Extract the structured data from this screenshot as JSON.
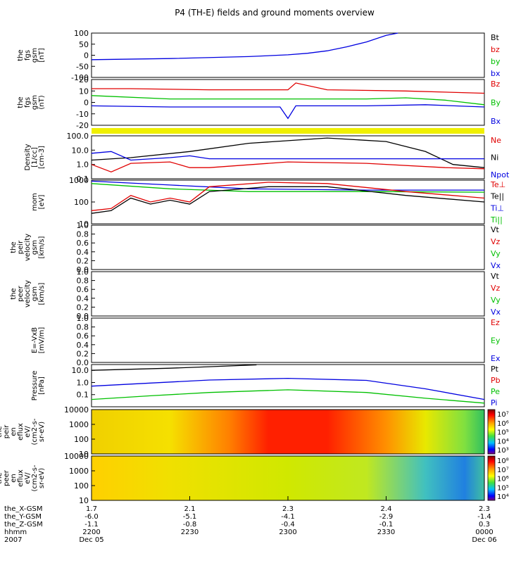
{
  "chart_data": {
    "type": "line",
    "title": "P4 (TH-E) fields and ground moments overview",
    "time_axis": {
      "ticks": [
        "2200",
        "2230",
        "2300",
        "2330",
        "0000"
      ],
      "dates": [
        "Dec 05",
        "",
        "",
        "",
        "Dec 06"
      ],
      "rows": [
        {
          "label": "the_X-GSM",
          "values": [
            "1.7",
            "2.1",
            "2.3",
            "2.4",
            "2.3"
          ]
        },
        {
          "label": "the_Y-GSM",
          "values": [
            "-6.0",
            "-5.1",
            "-4.1",
            "-2.9",
            "-1.4"
          ]
        },
        {
          "label": "the_Z-GSM",
          "values": [
            "-1.1",
            "-0.8",
            "-0.4",
            "-0.1",
            "0.3"
          ]
        },
        {
          "label": "hhmm",
          "values": [
            "2200",
            "2230",
            "2300",
            "2330",
            "0000"
          ]
        },
        {
          "label": "2007",
          "values": [
            "Dec 05",
            "",
            "",
            "",
            "Dec 06"
          ]
        }
      ]
    },
    "panels": [
      {
        "ylabel": [
          "the",
          "fgs",
          "gsm",
          "[nT]"
        ],
        "yscale": "linear",
        "ylim": [
          -100,
          100
        ],
        "ticks": [
          "100",
          "50",
          "0",
          "-50",
          "-100"
        ],
        "legend": [
          {
            "text": "Bt",
            "color": "#000000"
          },
          {
            "text": "bz",
            "color": "#e00000"
          },
          {
            "text": "by",
            "color": "#00c000"
          },
          {
            "text": "bx",
            "color": "#0000e0"
          }
        ],
        "series": [
          {
            "color": "#0000e0",
            "x": [
              0,
              0.2,
              0.4,
              0.5,
              0.55,
              0.6,
              0.65,
              0.7,
              0.75,
              0.78
            ],
            "y": [
              -20,
              -15,
              -6,
              2,
              9,
              20,
              38,
              60,
              90,
              100
            ]
          }
        ]
      },
      {
        "ylabel": [
          "the",
          "fgs",
          "gsm",
          "(nT)"
        ],
        "yscale": "linear",
        "ylim": [
          -20,
          20
        ],
        "ticks": [
          "20",
          "10",
          "0",
          "-10",
          "-20"
        ],
        "legend": [
          {
            "text": "Bz",
            "color": "#e00000"
          },
          {
            "text": "By",
            "color": "#00c000"
          },
          {
            "text": "Bx",
            "color": "#0000e0"
          }
        ],
        "series": [
          {
            "color": "#e00000",
            "x": [
              0,
              0.1,
              0.3,
              0.5,
              0.52,
              0.6,
              0.8,
              1
            ],
            "y": [
              12,
              12,
              11,
              11,
              17,
              11,
              10,
              8
            ]
          },
          {
            "color": "#00c000",
            "x": [
              0,
              0.2,
              0.5,
              0.7,
              0.8,
              0.9,
              1
            ],
            "y": [
              6,
              3,
              3,
              3,
              4,
              2,
              -2
            ]
          },
          {
            "color": "#0000e0",
            "x": [
              0,
              0.2,
              0.48,
              0.5,
              0.52,
              0.7,
              0.85,
              1
            ],
            "y": [
              -3,
              -4,
              -4,
              -14,
              -3,
              -3,
              -2,
              -4
            ]
          }
        ]
      },
      {
        "ylabel": [
          "Density",
          "[1/cc]",
          "[cm-3]"
        ],
        "yscale": "log",
        "ylim": [
          0.1,
          100
        ],
        "ticks": [
          "100.0",
          "10.0",
          "1.0",
          "0.1"
        ],
        "legend": [
          {
            "text": "Ne",
            "color": "#e00000"
          },
          {
            "text": "Ni",
            "color": "#000000"
          },
          {
            "text": "Npot",
            "color": "#0000e0"
          }
        ],
        "series": [
          {
            "color": "#000000",
            "x": [
              0,
              0.1,
              0.25,
              0.4,
              0.6,
              0.75,
              0.85,
              0.92,
              1
            ],
            "y": [
              2,
              3,
              8,
              30,
              70,
              40,
              8,
              1,
              0.6
            ]
          },
          {
            "color": "#e00000",
            "x": [
              0,
              0.05,
              0.1,
              0.2,
              0.25,
              0.3,
              0.5,
              0.7,
              0.9,
              1
            ],
            "y": [
              1,
              0.3,
              1.2,
              1.5,
              0.6,
              0.6,
              1.5,
              1.2,
              0.6,
              0.5
            ]
          },
          {
            "color": "#0000e0",
            "x": [
              0,
              0.05,
              0.1,
              0.2,
              0.25,
              0.3,
              0.6,
              1
            ],
            "y": [
              6,
              8,
              2,
              3,
              4,
              2.5,
              2.5,
              2.5
            ]
          }
        ]
      },
      {
        "ylabel": [
          "mom",
          "[eV]"
        ],
        "yscale": "log",
        "ylim": [
          10,
          1000
        ],
        "ticks": [
          "1000",
          "100",
          "10"
        ],
        "legend": [
          {
            "text": "Te⊥",
            "color": "#e00000"
          },
          {
            "text": "Te||",
            "color": "#000000"
          },
          {
            "text": "Ti⊥",
            "color": "#0000e0"
          },
          {
            "text": "Ti||",
            "color": "#00c000"
          }
        ],
        "series": [
          {
            "color": "#0000e0",
            "x": [
              0,
              0.2,
              0.4,
              0.7,
              1
            ],
            "y": [
              900,
              600,
              400,
              350,
              350
            ]
          },
          {
            "color": "#00c000",
            "x": [
              0,
              0.2,
              0.4,
              0.7,
              1
            ],
            "y": [
              700,
              400,
              300,
              300,
              280
            ]
          },
          {
            "color": "#e00000",
            "x": [
              0,
              0.05,
              0.1,
              0.15,
              0.2,
              0.25,
              0.3,
              0.45,
              0.6,
              0.8,
              1
            ],
            "y": [
              40,
              50,
              200,
              100,
              150,
              100,
              500,
              800,
              700,
              300,
              150
            ]
          },
          {
            "color": "#000000",
            "x": [
              0,
              0.05,
              0.1,
              0.15,
              0.2,
              0.25,
              0.3,
              0.45,
              0.6,
              0.8,
              1
            ],
            "y": [
              30,
              40,
              150,
              80,
              120,
              80,
              300,
              500,
              500,
              200,
              100
            ]
          }
        ]
      },
      {
        "ylabel": [
          "the",
          "peir",
          "velocity",
          "gsm",
          "[km/s]"
        ],
        "yscale": "linear",
        "ylim": [
          0,
          1
        ],
        "ticks": [
          "1.0",
          "0.8",
          "0.6",
          "0.4",
          "0.2",
          "0.0"
        ],
        "legend": [
          {
            "text": "Vt",
            "color": "#000000"
          },
          {
            "text": "Vz",
            "color": "#e00000"
          },
          {
            "text": "Vy",
            "color": "#00c000"
          },
          {
            "text": "Vx",
            "color": "#0000e0"
          }
        ],
        "series": []
      },
      {
        "ylabel": [
          "the",
          "peer",
          "velocity",
          "gsm",
          "[km/s]"
        ],
        "yscale": "linear",
        "ylim": [
          0,
          1
        ],
        "ticks": [
          "1.0",
          "0.8",
          "0.6",
          "0.4",
          "0.2",
          "0.0"
        ],
        "legend": [
          {
            "text": "Vt",
            "color": "#000000"
          },
          {
            "text": "Vz",
            "color": "#e00000"
          },
          {
            "text": "Vy",
            "color": "#00c000"
          },
          {
            "text": "Vx",
            "color": "#0000e0"
          }
        ],
        "series": []
      },
      {
        "ylabel": [
          "E=-VxB",
          "[mV/m]"
        ],
        "yscale": "linear",
        "ylim": [
          0,
          1
        ],
        "ticks": [
          "1.0",
          "0.8",
          "0.6",
          "0.4",
          "0.2",
          "0.0"
        ],
        "legend": [
          {
            "text": "Ez",
            "color": "#e00000"
          },
          {
            "text": "Ey",
            "color": "#00c000"
          },
          {
            "text": "Ex",
            "color": "#0000e0"
          }
        ],
        "series": []
      },
      {
        "ylabel": [
          "Pressure",
          "[nPa]"
        ],
        "yscale": "log",
        "ylim": [
          0.01,
          30
        ],
        "ticks": [
          "10.0",
          "1.0",
          "0.1"
        ],
        "legend": [
          {
            "text": "Pt",
            "color": "#000000"
          },
          {
            "text": "Pb",
            "color": "#e00000"
          },
          {
            "text": "Pe",
            "color": "#00c000"
          },
          {
            "text": "Pi",
            "color": "#0000e0"
          }
        ],
        "series": [
          {
            "color": "#000000",
            "x": [
              0,
              0.2,
              0.42
            ],
            "y": [
              10,
              15,
              28
            ]
          },
          {
            "color": "#0000e0",
            "x": [
              0,
              0.15,
              0.3,
              0.5,
              0.7,
              0.85,
              1
            ],
            "y": [
              0.5,
              0.9,
              1.6,
              2.2,
              1.5,
              0.3,
              0.04
            ]
          },
          {
            "color": "#00c000",
            "x": [
              0,
              0.15,
              0.3,
              0.5,
              0.7,
              0.85,
              1
            ],
            "y": [
              0.04,
              0.08,
              0.15,
              0.25,
              0.15,
              0.05,
              0.02
            ]
          }
        ]
      },
      {
        "ylabel": [
          "the",
          "peir",
          "en",
          "eflux",
          "eV/",
          "(cm2-s-",
          "sr-eV)"
        ],
        "yscale": "log",
        "ylim": [
          10,
          10000
        ],
        "ticks": [
          "10000",
          "1000",
          "100",
          "10"
        ],
        "colorbar_ticks": [
          "10⁷",
          "10⁶",
          "10⁵",
          "10⁴",
          "10³"
        ]
      },
      {
        "ylabel": [
          "the",
          "peer",
          "en",
          "eflux",
          "eV/",
          "(cm2-s-",
          "sr-eV)"
        ],
        "yscale": "log",
        "ylim": [
          10,
          10000
        ],
        "ticks": [
          "10000",
          "1000",
          "100",
          "10"
        ],
        "colorbar_ticks": [
          "10⁸",
          "10⁷",
          "10⁶",
          "10⁵",
          "10⁴"
        ]
      }
    ]
  }
}
